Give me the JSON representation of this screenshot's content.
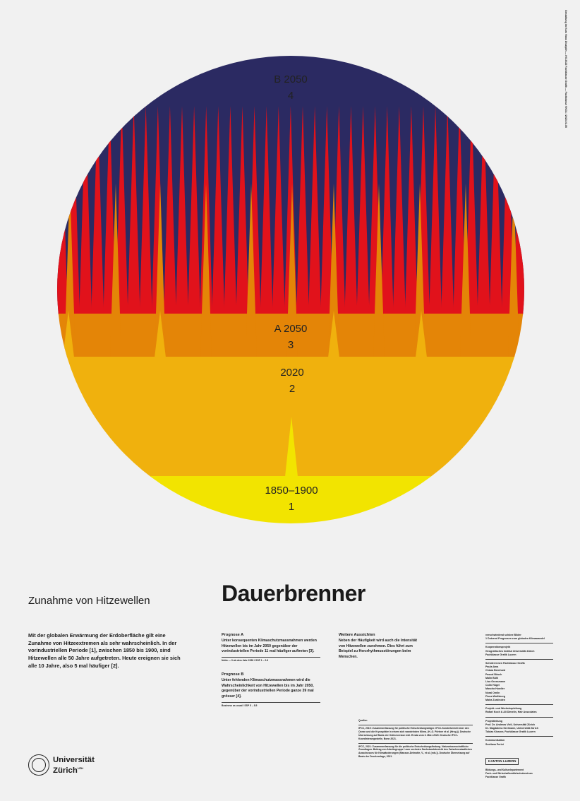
{
  "colors": {
    "background": "#f1f1f1",
    "navy": "#2b2a62",
    "red": "#e1121b",
    "orange": "#e48507",
    "amber": "#f0b10d",
    "yellow": "#f2e400"
  },
  "bands": [
    {
      "name": "B 2050",
      "value": "4"
    },
    {
      "name": "A 2050",
      "value": "3"
    },
    {
      "name": "2020",
      "value": "2"
    },
    {
      "name": "1850–1900",
      "value": "1"
    }
  ],
  "vertical_note": "Gestaltung im Kurs Hans Disziplin — HS 2022 Fachklasse Grafik — Fachklasse VKG1 / 2023.01.05",
  "subtitle": "Zunahme von Hitzewellen",
  "title": "Dauerbrenner",
  "intro": "Mit der globalen Erwärmung der Erdoberfläche gilt eine Zunahme von Hitzeextremen als sehr wahrscheinlich. In der vorindustriellen Periode [1], zwischen 1850 bis 1900, sind Hitzewellen alle 50 Jahre aufgetreten. Heute ereignen sie sich alle 10 Jahre, also 5 mal häufiger [2].",
  "prognose_a": {
    "heading": "Prognose A",
    "text": "Unter konsequenten Klimaschutzmassnahmen werden Hitzewellen bis im Jahr 2050 gegenüber der vorindustriellen Periode 11 mal häufiger auftreten [3].",
    "note": "Netto — 0 ab dem Jahr 2050 / SSP 1 – 2.6"
  },
  "prognose_b": {
    "heading": "Prognose B",
    "text": "Unter fehlenden Klimaschutzmassnahmen wird die Wahrscheinlichkeit von Hitzewellen bis im Jahr 2050, gegenüber der vorindustriellen Periode ganze 39 mal grösser [4].",
    "note": "Business as usual / SSP 5 – 8.5"
  },
  "aussichten": {
    "heading": "Weitere Aussichten",
    "text": "Neben der Häufigkeit wird auch die Intensität von Hitzewellen zunehmen. Dies führt zum Beispiel zu Herzrhythmusstörungen beim Menschen."
  },
  "quellen": {
    "heading": "Quellen",
    "items": [
      "IPCC, 2019: Zusammenfassung für politische Entscheidungsträger. IPCC-Sonderbericht über den Ozean und die Kryosphäre in einem sich wandelnden Klima. (H.-O. Pörtner et al. (Hrsg.)). Deutsche Übersetzung auf Basis der Onlineversion inkl. Errata vom 3. März 2020. Deutsche IPCC-Koordinierungsstelle, Bonn 2021.",
      "IPCC, 2021: Zusammenfassung für die politische Entscheidungsfindung. Naturwissenschaftliche Grundlagen. Beitrag von Arbeitsgruppe I zum sechsten Sachstandsbericht des Zwischenstaatlichen Ausschusses für Klimaänderungen (Masson-Delmotte, V., et al. (eds.)). Deutsche Übersetzung auf Basis der Druckvorlage, 2021."
    ]
  },
  "credits": [
    {
      "heading": "verschwiedend schöne Bilder",
      "lines": [
        "1 Dutzend Prognosen zum globalen Klimawandel"
      ]
    },
    {
      "heading": "Kooperationsprojekt",
      "lines": [
        "Geografisches Institut Universität Zürich",
        "Fachklasse Grafik Luzern"
      ]
    },
    {
      "heading": "Schüler:innen Fachklasse Grafik",
      "lines": [
        "Paula Ama",
        "Chiara Bernhard",
        "Pascal Bösch",
        "Malin Bühl",
        "Lisa Grossmann",
        "Colin Hügel",
        "Mascha Huwiler",
        "Noral Omlin",
        "Fiona Wolfsberg",
        "Maira Zurbinden"
      ]
    },
    {
      "heading": "Projekt- und Workshopleitung",
      "lines": [
        "Rafael Koch & Ali Dimelin, Hair Associates"
      ]
    },
    {
      "heading": "Projektleitung",
      "lines": [
        "Prof. Dr. Andreas Vieli, Universität Zürich",
        "Dr. Magdalena Seelmann, Universität Zürich",
        "Tobias Kissner, Fachklasse Grafik Luzern"
      ]
    },
    {
      "heading": "Kommunikation",
      "lines": [
        "Svetlana Perini"
      ]
    }
  ],
  "university": {
    "line1": "Universität",
    "line2": "Zürich",
    "sup": "UZH"
  },
  "kanton": {
    "logo": "KANTON LUZERN",
    "lines": [
      "Bildungs- und Kulturdepartement",
      "Fach- und Wirtschaftsmittelschulzentrum",
      "Fachklasse Grafik"
    ]
  }
}
